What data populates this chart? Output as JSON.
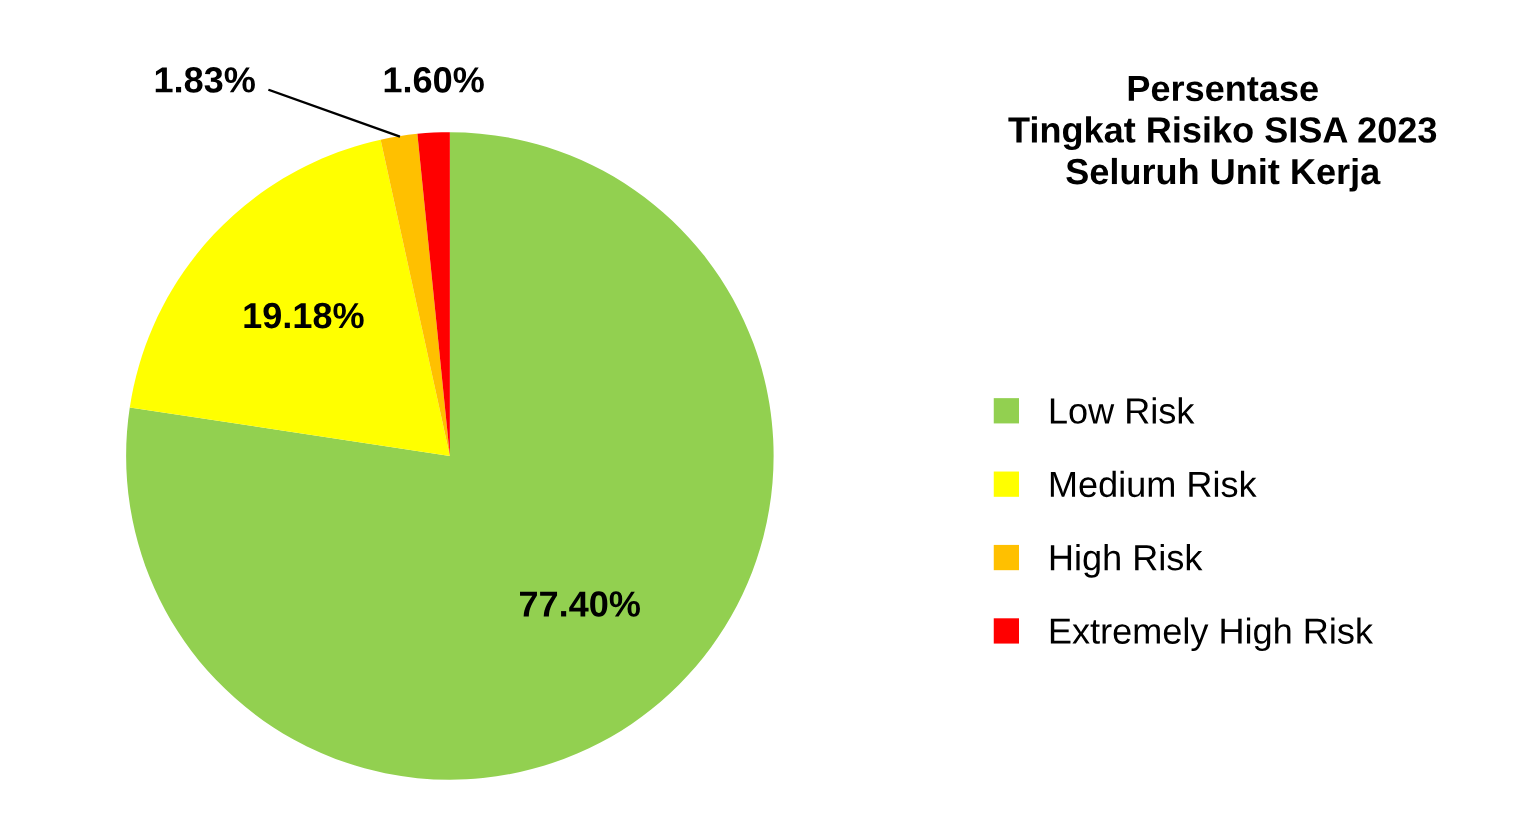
{
  "chart_data": {
    "type": "pie",
    "title": "Persentase\nTingkat Risiko SISA 2023\nSeluruh Unit Kerja",
    "categories": [
      "Low Risk",
      "Medium Risk",
      "High Risk",
      "Extremely High Risk"
    ],
    "values": [
      77.4,
      19.18,
      1.83,
      1.6
    ],
    "colors": [
      "#92d050",
      "#ffff00",
      "#ffc000",
      "#ff0000"
    ],
    "value_labels": [
      "77.40%",
      "19.18%",
      "1.83%",
      "1.60%"
    ],
    "legend": "right"
  }
}
